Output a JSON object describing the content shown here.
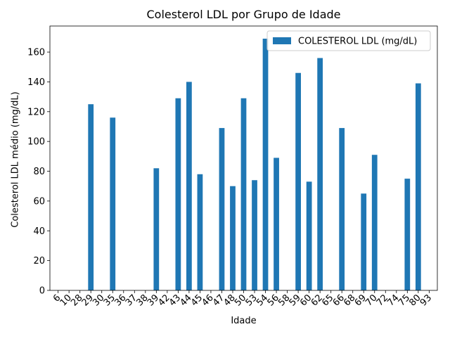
{
  "chart_data": {
    "type": "bar",
    "title": "Colesterol LDL por Grupo de Idade",
    "xlabel": "Idade",
    "ylabel": "Colesterol LDL médio (mg/dL)",
    "categories": [
      "6",
      "10",
      "28",
      "29",
      "30",
      "35",
      "36",
      "37",
      "38",
      "39",
      "42",
      "43",
      "44",
      "45",
      "46",
      "47",
      "48",
      "50",
      "53",
      "54",
      "56",
      "58",
      "59",
      "60",
      "62",
      "65",
      "66",
      "68",
      "69",
      "70",
      "72",
      "74",
      "75",
      "80",
      "93"
    ],
    "series": [
      {
        "name": "COLESTEROL LDL (mg/dL)",
        "color": "#1f77b4",
        "values": [
          0,
          0,
          0,
          125,
          0,
          116,
          0,
          0,
          0,
          82,
          0,
          129,
          140,
          78,
          0,
          109,
          70,
          129,
          74,
          169,
          89,
          0,
          146,
          73,
          156,
          0,
          109,
          0,
          65,
          91,
          0,
          0,
          75,
          139,
          0
        ]
      }
    ],
    "yticks": [
      0,
      20,
      40,
      60,
      80,
      100,
      120,
      140,
      160
    ],
    "ylim": [
      0,
      177.5
    ],
    "legend_position": "top-right",
    "grid": false
  }
}
